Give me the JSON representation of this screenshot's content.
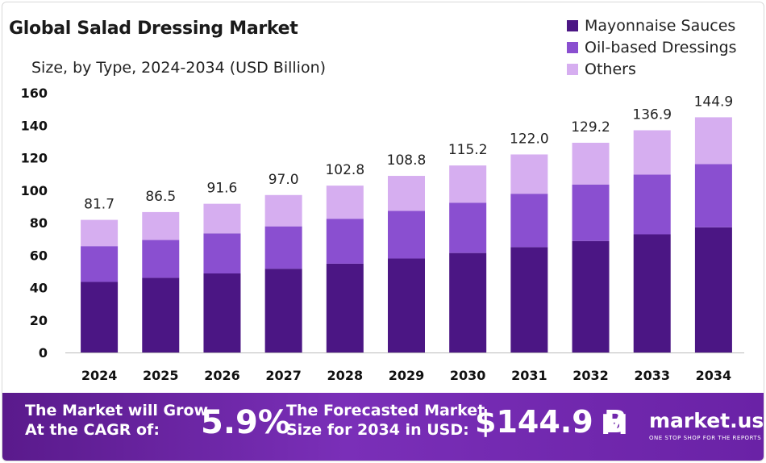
{
  "title": "Global Salad Dressing Market",
  "subtitle": "Size, by Type, 2024-2034 (USD Billion)",
  "colors": {
    "Mayonnaise Sauces": "#4b1684",
    "Oil-based Dressings": "#8a4fd0",
    "Others": "#d6aef0",
    "banner": "#6a22a6"
  },
  "chart_data": {
    "type": "bar",
    "stacked": true,
    "categories": [
      "2024",
      "2025",
      "2026",
      "2027",
      "2028",
      "2029",
      "2030",
      "2031",
      "2032",
      "2033",
      "2034"
    ],
    "series": [
      {
        "name": "Mayonnaise Sauces",
        "values": [
          43.5,
          46.0,
          48.7,
          51.6,
          54.7,
          57.9,
          61.3,
          64.9,
          68.7,
          72.8,
          77.1
        ]
      },
      {
        "name": "Oil-based Dressings",
        "values": [
          22.0,
          23.3,
          24.7,
          26.1,
          27.7,
          29.3,
          31.0,
          32.9,
          34.8,
          36.8,
          39.0
        ]
      },
      {
        "name": "Others",
        "values": [
          16.2,
          17.2,
          18.2,
          19.3,
          20.4,
          21.6,
          22.9,
          24.2,
          25.7,
          27.3,
          28.8
        ]
      }
    ],
    "totals": [
      "81.7",
      "86.5",
      "91.6",
      "97.0",
      "102.8",
      "108.8",
      "115.2",
      "122.0",
      "129.2",
      "136.9",
      "144.9"
    ],
    "ylim": [
      0,
      160
    ],
    "yticks": [
      "0",
      "20",
      "40",
      "60",
      "80",
      "100",
      "120",
      "140",
      "160"
    ],
    "legend_position": "top-right",
    "grid": false
  },
  "banner": {
    "grow_line1": "The Market will Grow",
    "grow_line2": "At the CAGR of:",
    "cagr": "5.9%",
    "forecast_line1": "The Forecasted Market",
    "forecast_line2": "Size for 2034 in USD:",
    "forecast_value": "$144.9 B",
    "brand_mark": "M",
    "brand_name": "market.us",
    "brand_tagline": "ONE STOP SHOP FOR THE REPORTS"
  }
}
